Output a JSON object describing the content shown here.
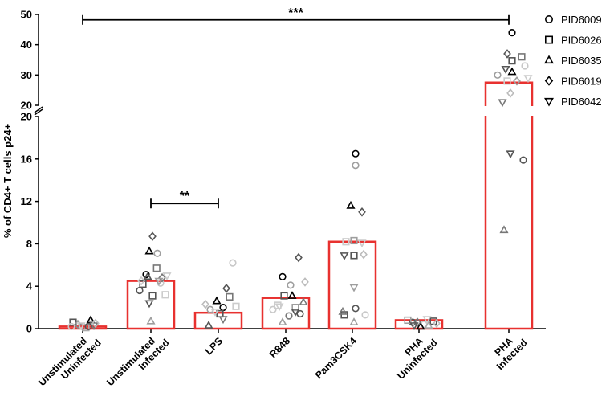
{
  "chart_data": {
    "type": "bar",
    "title": "",
    "xlabel": "",
    "ylabel": "% of CD4+ T cells p24+",
    "y_axis_break": {
      "lower_range": [
        0,
        20
      ],
      "lower_ticks": [
        "0",
        "4",
        "8",
        "12",
        "16",
        "20"
      ],
      "upper_range": [
        20,
        50
      ],
      "upper_ticks": [
        "20",
        "30",
        "40",
        "50"
      ]
    },
    "categories": [
      {
        "line1": "Unstimulated",
        "line2": "Uninfected"
      },
      {
        "line1": "Unstimulated",
        "line2": "Infected"
      },
      {
        "line1": "LPS",
        "line2": ""
      },
      {
        "line1": "R848",
        "line2": ""
      },
      {
        "line1": "Pam3CSK4",
        "line2": ""
      },
      {
        "line1": "PHA",
        "line2": "Uninfected"
      },
      {
        "line1": "PHA",
        "line2": "Infected"
      }
    ],
    "bar_values": [
      0.2,
      4.5,
      1.5,
      2.9,
      8.2,
      0.8,
      27.5
    ],
    "bar_color": "#e8312f",
    "legend": [
      {
        "name": "PID6009",
        "marker": "circle"
      },
      {
        "name": "PID6026",
        "marker": "square"
      },
      {
        "name": "PID6035",
        "marker": "triangle-up"
      },
      {
        "name": "PID6019",
        "marker": "diamond"
      },
      {
        "name": "PID6042",
        "marker": "triangle-down"
      }
    ],
    "points": [
      [
        {
          "dx": 0.0,
          "y": 0.2,
          "m": "circle",
          "c": "#9e9e9e"
        },
        {
          "dx": -0.3,
          "y": 0.6,
          "m": "square",
          "c": "#555555"
        },
        {
          "dx": 0.25,
          "y": 0.8,
          "m": "triangle-up",
          "c": "#000000"
        },
        {
          "dx": -0.15,
          "y": 0.4,
          "m": "diamond",
          "c": "#8a8a8a"
        },
        {
          "dx": 0.35,
          "y": 0.3,
          "m": "triangle-down",
          "c": "#777777"
        },
        {
          "dx": -0.35,
          "y": 0.2,
          "m": "circle",
          "c": "#c8c8c8"
        },
        {
          "dx": 0.1,
          "y": 0.1,
          "m": "square",
          "c": "#aaaaaa"
        },
        {
          "dx": -0.05,
          "y": 0.3,
          "m": "triangle-down",
          "c": "#cccccc"
        },
        {
          "dx": 0.4,
          "y": 0.5,
          "m": "diamond",
          "c": "#bbbbbb"
        },
        {
          "dx": 0.18,
          "y": 0.2,
          "m": "circle",
          "c": "#555555"
        }
      ],
      [
        {
          "dx": -0.15,
          "y": 5.1,
          "m": "circle",
          "c": "#000000"
        },
        {
          "dx": 0.2,
          "y": 7.1,
          "m": "circle",
          "c": "#9e9e9e"
        },
        {
          "dx": -0.35,
          "y": 3.6,
          "m": "circle",
          "c": "#555555"
        },
        {
          "dx": 0.3,
          "y": 4.3,
          "m": "circle",
          "c": "#c8c8c8"
        },
        {
          "dx": 0.18,
          "y": 5.7,
          "m": "square",
          "c": "#777777"
        },
        {
          "dx": -0.25,
          "y": 4.2,
          "m": "square",
          "c": "#555555"
        },
        {
          "dx": 0.05,
          "y": 3.1,
          "m": "square",
          "c": "#555555"
        },
        {
          "dx": 0.45,
          "y": 3.2,
          "m": "square",
          "c": "#cccccc"
        },
        {
          "dx": -0.05,
          "y": 7.3,
          "m": "triangle-up",
          "c": "#000000"
        },
        {
          "dx": -0.1,
          "y": 4.9,
          "m": "triangle-up",
          "c": "#555555"
        },
        {
          "dx": 0.0,
          "y": 0.7,
          "m": "triangle-up",
          "c": "#9e9e9e"
        },
        {
          "dx": 0.05,
          "y": 8.7,
          "m": "diamond",
          "c": "#555555"
        },
        {
          "dx": 0.35,
          "y": 4.8,
          "m": "diamond",
          "c": "#777777"
        },
        {
          "dx": -0.3,
          "y": 4.5,
          "m": "diamond",
          "c": "#c8c8c8"
        },
        {
          "dx": -0.05,
          "y": 2.4,
          "m": "triangle-down",
          "c": "#555555"
        },
        {
          "dx": 0.25,
          "y": 4.5,
          "m": "triangle-down",
          "c": "#9e9e9e"
        },
        {
          "dx": 0.5,
          "y": 5.0,
          "m": "triangle-down",
          "c": "#cccccc"
        }
      ],
      [
        {
          "dx": 0.15,
          "y": 2.0,
          "m": "circle",
          "c": "#000000"
        },
        {
          "dx": 0.45,
          "y": 6.2,
          "m": "circle",
          "c": "#c8c8c8"
        },
        {
          "dx": -0.25,
          "y": 1.8,
          "m": "circle",
          "c": "#9e9e9e"
        },
        {
          "dx": 0.35,
          "y": 3.0,
          "m": "square",
          "c": "#777777"
        },
        {
          "dx": 0.05,
          "y": 1.4,
          "m": "square",
          "c": "#555555"
        },
        {
          "dx": 0.55,
          "y": 2.1,
          "m": "square",
          "c": "#cccccc"
        },
        {
          "dx": -0.05,
          "y": 2.6,
          "m": "triangle-up",
          "c": "#000000"
        },
        {
          "dx": -0.3,
          "y": 0.3,
          "m": "triangle-up",
          "c": "#555555"
        },
        {
          "dx": 0.25,
          "y": 3.8,
          "m": "diamond",
          "c": "#555555"
        },
        {
          "dx": -0.4,
          "y": 2.3,
          "m": "diamond",
          "c": "#bbbbbb"
        },
        {
          "dx": 0.15,
          "y": 0.9,
          "m": "triangle-down",
          "c": "#777777"
        },
        {
          "dx": -0.1,
          "y": 1.6,
          "m": "triangle-down",
          "c": "#cccccc"
        }
      ],
      [
        {
          "dx": -0.1,
          "y": 4.9,
          "m": "circle",
          "c": "#000000"
        },
        {
          "dx": 0.15,
          "y": 4.1,
          "m": "circle",
          "c": "#9e9e9e"
        },
        {
          "dx": 0.45,
          "y": 1.4,
          "m": "circle",
          "c": "#555555"
        },
        {
          "dx": -0.4,
          "y": 1.8,
          "m": "circle",
          "c": "#c8c8c8"
        },
        {
          "dx": -0.05,
          "y": 3.1,
          "m": "square",
          "c": "#555555"
        },
        {
          "dx": 0.3,
          "y": 2.0,
          "m": "square",
          "c": "#9e9e9e"
        },
        {
          "dx": -0.25,
          "y": 2.2,
          "m": "square",
          "c": "#cccccc"
        },
        {
          "dx": 0.2,
          "y": 3.1,
          "m": "triangle-up",
          "c": "#000000"
        },
        {
          "dx": 0.55,
          "y": 2.5,
          "m": "triangle-up",
          "c": "#777777"
        },
        {
          "dx": -0.1,
          "y": 0.6,
          "m": "triangle-up",
          "c": "#9e9e9e"
        },
        {
          "dx": 0.4,
          "y": 6.7,
          "m": "diamond",
          "c": "#555555"
        },
        {
          "dx": 0.6,
          "y": 4.4,
          "m": "diamond",
          "c": "#bbbbbb"
        },
        {
          "dx": 0.3,
          "y": 1.6,
          "m": "triangle-down",
          "c": "#555555"
        },
        {
          "dx": -0.2,
          "y": 2.1,
          "m": "triangle-down",
          "c": "#cccccc"
        },
        {
          "dx": 0.1,
          "y": 1.2,
          "m": "circle",
          "c": "#777777"
        }
      ],
      [
        {
          "dx": 0.1,
          "y": 16.5,
          "m": "circle",
          "c": "#000000"
        },
        {
          "dx": 0.1,
          "y": 15.4,
          "m": "circle",
          "c": "#9e9e9e"
        },
        {
          "dx": 0.1,
          "y": 1.9,
          "m": "circle",
          "c": "#555555"
        },
        {
          "dx": 0.4,
          "y": 1.3,
          "m": "circle",
          "c": "#c8c8c8"
        },
        {
          "dx": 0.05,
          "y": 8.3,
          "m": "square",
          "c": "#9e9e9e"
        },
        {
          "dx": 0.05,
          "y": 6.9,
          "m": "square",
          "c": "#555555"
        },
        {
          "dx": -0.2,
          "y": 8.2,
          "m": "square",
          "c": "#cccccc"
        },
        {
          "dx": -0.25,
          "y": 1.3,
          "m": "square",
          "c": "#555555"
        },
        {
          "dx": -0.05,
          "y": 11.6,
          "m": "triangle-up",
          "c": "#000000"
        },
        {
          "dx": -0.3,
          "y": 1.6,
          "m": "triangle-up",
          "c": "#777777"
        },
        {
          "dx": 0.05,
          "y": 0.6,
          "m": "triangle-up",
          "c": "#9e9e9e"
        },
        {
          "dx": 0.3,
          "y": 11.0,
          "m": "diamond",
          "c": "#555555"
        },
        {
          "dx": 0.35,
          "y": 7.0,
          "m": "diamond",
          "c": "#bbbbbb"
        },
        {
          "dx": -0.25,
          "y": 6.9,
          "m": "triangle-down",
          "c": "#555555"
        },
        {
          "dx": 0.05,
          "y": 3.9,
          "m": "triangle-down",
          "c": "#9e9e9e"
        },
        {
          "dx": 0.3,
          "y": 8.1,
          "m": "triangle-down",
          "c": "#cccccc"
        }
      ],
      [
        {
          "dx": -0.2,
          "y": 0.6,
          "m": "circle",
          "c": "#555555"
        },
        {
          "dx": 0.15,
          "y": 0.4,
          "m": "circle",
          "c": "#c8c8c8"
        },
        {
          "dx": 0.45,
          "y": 0.7,
          "m": "square",
          "c": "#555555"
        },
        {
          "dx": -0.35,
          "y": 0.8,
          "m": "square",
          "c": "#9e9e9e"
        },
        {
          "dx": 0.05,
          "y": 0.2,
          "m": "triangle-up",
          "c": "#000000"
        },
        {
          "dx": 0.3,
          "y": 0.3,
          "m": "triangle-up",
          "c": "#aaaaaa"
        },
        {
          "dx": -0.05,
          "y": 0.6,
          "m": "diamond",
          "c": "#777777"
        },
        {
          "dx": 0.55,
          "y": 0.5,
          "m": "diamond",
          "c": "#bbbbbb"
        },
        {
          "dx": -0.15,
          "y": 0.3,
          "m": "triangle-down",
          "c": "#555555"
        },
        {
          "dx": 0.25,
          "y": 0.9,
          "m": "triangle-down",
          "c": "#cccccc"
        }
      ],
      [
        {
          "dx": 0.1,
          "y": 44.0,
          "m": "circle",
          "c": "#000000"
        },
        {
          "dx": -0.35,
          "y": 30.0,
          "m": "circle",
          "c": "#9e9e9e"
        },
        {
          "dx": 0.45,
          "y": 15.9,
          "m": "circle",
          "c": "#555555"
        },
        {
          "dx": 0.5,
          "y": 33.0,
          "m": "circle",
          "c": "#c8c8c8"
        },
        {
          "dx": 0.1,
          "y": 34.7,
          "m": "square",
          "c": "#555555"
        },
        {
          "dx": 0.4,
          "y": 36.0,
          "m": "square",
          "c": "#777777"
        },
        {
          "dx": -0.05,
          "y": 28.0,
          "m": "square",
          "c": "#cccccc"
        },
        {
          "dx": 0.1,
          "y": 31.0,
          "m": "triangle-up",
          "c": "#000000"
        },
        {
          "dx": -0.15,
          "y": 9.3,
          "m": "triangle-up",
          "c": "#777777"
        },
        {
          "dx": -0.05,
          "y": 37.0,
          "m": "diamond",
          "c": "#555555"
        },
        {
          "dx": 0.25,
          "y": 28.0,
          "m": "diamond",
          "c": "#9e9e9e"
        },
        {
          "dx": 0.05,
          "y": 24.0,
          "m": "diamond",
          "c": "#bbbbbb"
        },
        {
          "dx": -0.1,
          "y": 32.0,
          "m": "triangle-down",
          "c": "#555555"
        },
        {
          "dx": -0.2,
          "y": 21.0,
          "m": "triangle-down",
          "c": "#777777"
        },
        {
          "dx": 0.05,
          "y": 16.5,
          "m": "triangle-down",
          "c": "#555555"
        },
        {
          "dx": 0.6,
          "y": 29.0,
          "m": "triangle-down",
          "c": "#cccccc"
        }
      ]
    ],
    "annotations": [
      {
        "from": 0,
        "to": 6,
        "label": "***",
        "y_upper": 48.2
      },
      {
        "from": 1,
        "to": 2,
        "label": "**",
        "y": 11.8
      }
    ]
  }
}
